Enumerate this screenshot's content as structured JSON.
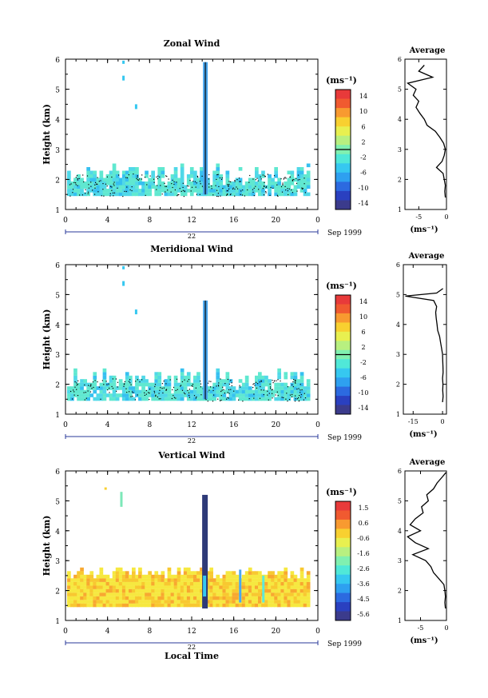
{
  "chart_data": [
    {
      "type": "heatmap",
      "title": "Zonal Wind",
      "ylabel": "Height (km)",
      "xlim": [
        0,
        24
      ],
      "ylim": [
        1,
        6
      ],
      "x_ticks": [
        "0",
        "4",
        "8",
        "12",
        "16",
        "20",
        "0"
      ],
      "y_ticks": [
        "1",
        "2",
        "3",
        "4",
        "5",
        "6"
      ],
      "date_label": "22",
      "month_label": "Sep 1999",
      "colorbar": {
        "unit": "(ms⁻¹)",
        "ticks": [
          "14",
          "10",
          "6",
          "2",
          "-2",
          "-6",
          "-10",
          "-14"
        ],
        "range": [
          -14,
          14
        ]
      },
      "average_profile": {
        "title": "Average",
        "xlabel": "(ms⁻¹)",
        "x_ticks": [
          "-5",
          "0"
        ],
        "xlim": [
          -7.5,
          0
        ],
        "y_ticks": [
          "1",
          "2",
          "3",
          "4",
          "5",
          "6"
        ],
        "height": [
          1.4,
          1.6,
          1.8,
          2.0,
          2.2,
          2.4,
          2.6,
          2.8,
          3.0,
          3.2,
          3.4,
          3.6,
          3.8,
          4.0,
          4.2,
          4.4,
          4.6,
          4.8,
          5.0,
          5.2,
          5.4,
          5.6,
          5.8
        ],
        "value": [
          -0.2,
          -0.3,
          -0.2,
          -0.4,
          -0.6,
          -1.8,
          -0.8,
          -0.4,
          -0.2,
          -0.5,
          -1.2,
          -2.0,
          -3.5,
          -4.0,
          -4.8,
          -5.5,
          -5.0,
          -6.0,
          -5.5,
          -7.0,
          -2.5,
          -5.0,
          -4.0
        ]
      }
    },
    {
      "type": "heatmap",
      "title": "Meridional Wind",
      "ylabel": "Height (km)",
      "xlim": [
        0,
        24
      ],
      "ylim": [
        1,
        6
      ],
      "x_ticks": [
        "0",
        "4",
        "8",
        "12",
        "16",
        "20",
        "0"
      ],
      "y_ticks": [
        "1",
        "2",
        "3",
        "4",
        "5",
        "6"
      ],
      "date_label": "22",
      "month_label": "Sep 1999",
      "colorbar": {
        "unit": "(ms⁻¹)",
        "ticks": [
          "14",
          "10",
          "6",
          "2",
          "-2",
          "-6",
          "-10",
          "-14"
        ],
        "range": [
          -14,
          14
        ]
      },
      "average_profile": {
        "title": "Average",
        "xlabel": "(ms⁻¹)",
        "x_ticks": [
          "-15",
          "0"
        ],
        "xlim": [
          -20,
          2
        ],
        "y_ticks": [
          "1",
          "2",
          "3",
          "4",
          "5",
          "6"
        ],
        "height": [
          1.4,
          1.6,
          1.8,
          2.0,
          2.2,
          2.4,
          2.6,
          2.8,
          3.0,
          3.2,
          3.4,
          3.6,
          3.8,
          4.0,
          4.2,
          4.4,
          4.6,
          4.8,
          4.95,
          5.05,
          5.2
        ],
        "value": [
          0.0,
          0.3,
          0.1,
          0.2,
          0.0,
          0.3,
          0.2,
          0.1,
          0.0,
          -0.5,
          -1.0,
          -1.5,
          -2.5,
          -2.8,
          -3.2,
          -3.5,
          -3.0,
          -4.5,
          -19.0,
          -3.0,
          0.2
        ]
      }
    },
    {
      "type": "heatmap",
      "title": "Vertical Wind",
      "ylabel": "Height (km)",
      "xlabel": "Local Time",
      "xlim": [
        0,
        24
      ],
      "ylim": [
        1,
        6
      ],
      "x_ticks": [
        "0",
        "4",
        "8",
        "12",
        "16",
        "20",
        "0"
      ],
      "y_ticks": [
        "1",
        "2",
        "3",
        "4",
        "5",
        "6"
      ],
      "date_label": "22",
      "month_label": "Sep 1999",
      "colorbar": {
        "unit": "(ms⁻¹)",
        "ticks": [
          "1.5",
          "0.6",
          "-0.6",
          "-1.6",
          "-2.6",
          "-3.6",
          "-4.5",
          "-5.6"
        ],
        "range": [
          -6,
          2
        ]
      },
      "average_profile": {
        "title": "Average",
        "xlabel": "(ms⁻¹)",
        "x_ticks": [
          "-5",
          "0"
        ],
        "xlim": [
          -8,
          0
        ],
        "y_ticks": [
          "1",
          "2",
          "3",
          "4",
          "5",
          "6"
        ],
        "height": [
          1.4,
          1.6,
          1.8,
          2.0,
          2.2,
          2.4,
          2.6,
          2.8,
          3.0,
          3.2,
          3.4,
          3.6,
          3.8,
          4.0,
          4.2,
          4.4,
          4.6,
          4.8,
          5.0,
          5.2,
          5.4,
          5.6,
          5.8,
          5.95
        ],
        "value": [
          -0.2,
          -0.3,
          -0.2,
          -0.3,
          -0.5,
          -1.5,
          -2.5,
          -3.0,
          -4.0,
          -6.5,
          -3.5,
          -6.0,
          -7.5,
          -5.0,
          -7.0,
          -6.0,
          -4.5,
          -4.8,
          -3.5,
          -3.8,
          -2.5,
          -1.8,
          -0.8,
          -0.1
        ]
      }
    }
  ]
}
